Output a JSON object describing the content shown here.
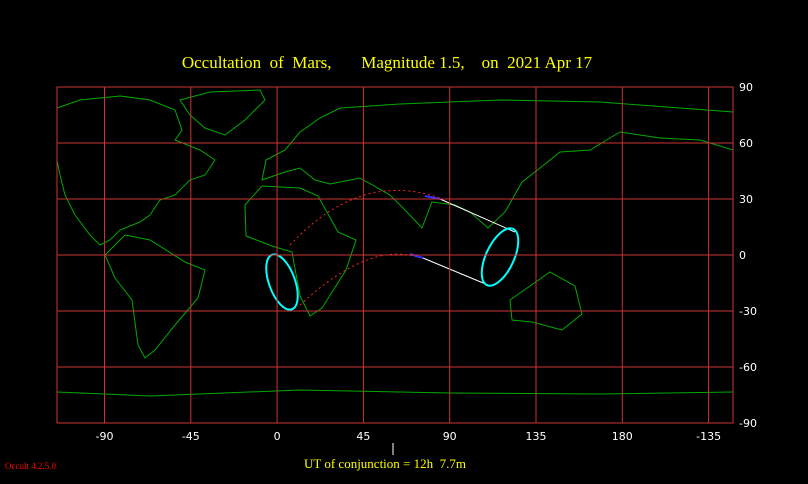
{
  "header": {
    "title": "Occultation  of  Mars,       Magnitude 1.5,    on  2021 Apr 17"
  },
  "axes": {
    "x_labels": [
      "-90",
      "-45",
      "0",
      "45",
      "90",
      "135",
      "180",
      "-135"
    ],
    "y_labels": [
      "90",
      "60",
      "30",
      "0",
      "-30",
      "-60",
      "-90"
    ]
  },
  "footer": {
    "conjunction": "UT of conjunction = 12h  7.7m",
    "version": "Occult 4.2.5.0"
  }
}
